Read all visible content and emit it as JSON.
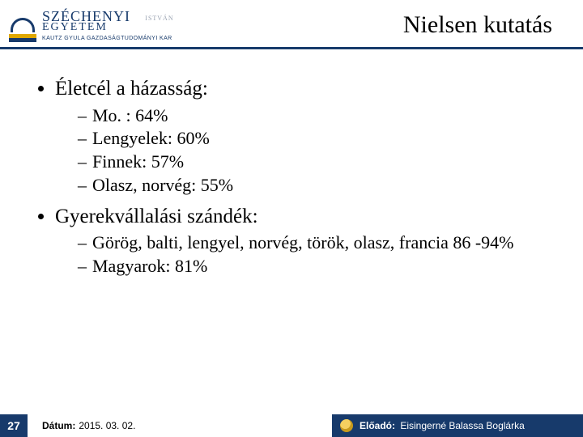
{
  "colors": {
    "brand": "#173a6b",
    "accent": "#e0a800",
    "text": "#000000",
    "bg": "#ffffff"
  },
  "logo": {
    "line1": "SZÉCHENYI",
    "istvan": "ISTVÁN",
    "line2": "EGYETEM",
    "faculty": "KAUTZ GYULA GAZDASÁGTUDOMÁNYI KAR"
  },
  "title": "Nielsen kutatás",
  "bullets": [
    {
      "text": "Életcél a házasság:",
      "sub": [
        "Mo. : 64%",
        "Lengyelek: 60%",
        "Finnek: 57%",
        "Olasz, norvég: 55%"
      ]
    },
    {
      "text": "Gyerekvállalási szándék:",
      "sub": [
        "Görög, balti, lengyel, norvég, török, olasz, francia 86 -94%",
        "Magyarok: 81%"
      ]
    }
  ],
  "footer": {
    "page": "27",
    "date_label": "Dátum:",
    "date_value": "2015. 03. 02.",
    "presenter_label": "Előadó:",
    "presenter_name": "Eisingerné Balassa Boglárka"
  }
}
